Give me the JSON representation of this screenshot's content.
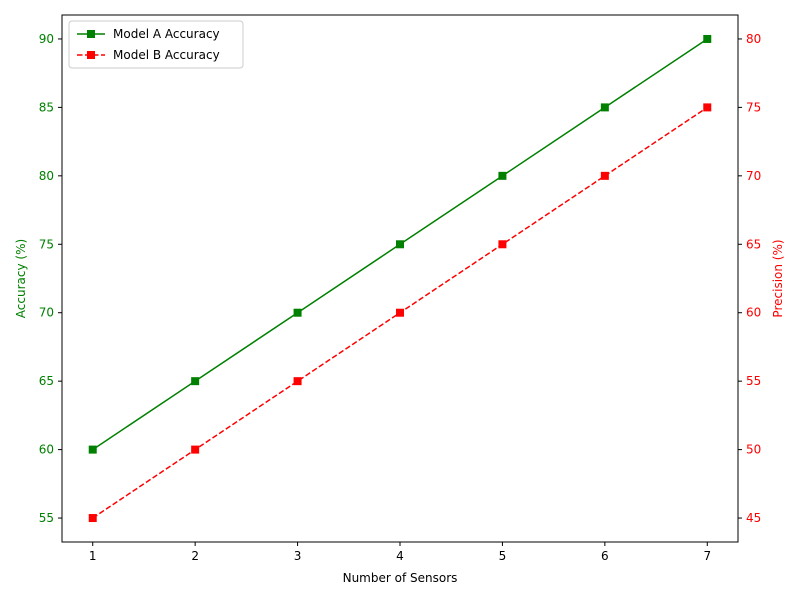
{
  "chart_data": {
    "type": "line",
    "title": "",
    "x": [
      1,
      2,
      3,
      4,
      5,
      6,
      7
    ],
    "xlabel": "Number of Sensors",
    "xlim": [
      0.7,
      7.3
    ],
    "xticks": [
      1,
      2,
      3,
      4,
      5,
      6,
      7
    ],
    "y_left": {
      "label": "Accuracy (%)",
      "lim": [
        53.25,
        91.75
      ],
      "ticks": [
        55,
        60,
        65,
        70,
        75,
        80,
        85,
        90
      ],
      "color": "#008000"
    },
    "y_right": {
      "label": "Precision (%)",
      "lim": [
        43.25,
        81.75
      ],
      "ticks": [
        45,
        50,
        55,
        60,
        65,
        70,
        75,
        80
      ],
      "color": "#ff0000"
    },
    "series": [
      {
        "name": "Model A Accuracy",
        "axis": "left",
        "values": [
          60,
          65,
          70,
          75,
          80,
          85,
          90
        ],
        "color": "#008000",
        "linestyle": "solid",
        "marker": "square"
      },
      {
        "name": "Model B Accuracy",
        "axis": "right",
        "values": [
          45,
          50,
          55,
          60,
          65,
          70,
          75
        ],
        "color": "#ff0000",
        "linestyle": "dashed",
        "marker": "square"
      }
    ],
    "legend": "top-left",
    "grid": false
  }
}
